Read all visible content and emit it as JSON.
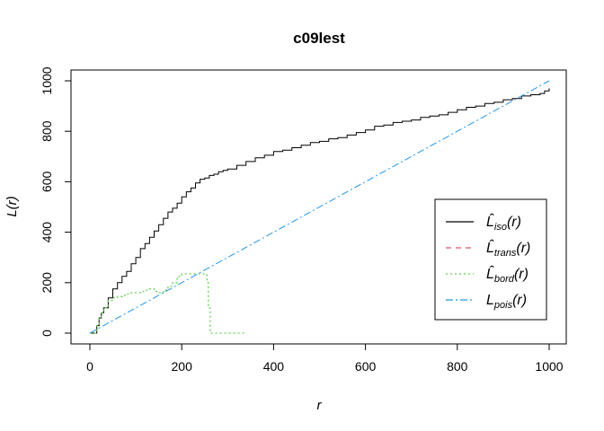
{
  "chart_data": {
    "type": "line",
    "title": "c09lest",
    "xlabel": "r",
    "ylabel": "L(r)",
    "xlim": [
      0,
      1000
    ],
    "ylim": [
      0,
      1000
    ],
    "xticks": [
      0,
      200,
      400,
      600,
      800,
      1000
    ],
    "yticks": [
      0,
      200,
      400,
      600,
      800,
      1000
    ],
    "grid": false,
    "legend_position": "bottom-right",
    "series": [
      {
        "name": "iso",
        "legend_main": "L̂",
        "legend_sub": "iso",
        "legend_tail": "(r)",
        "color": "#000000",
        "dash": "",
        "step": true,
        "x": [
          0,
          10,
          15,
          20,
          25,
          30,
          40,
          50,
          60,
          70,
          80,
          90,
          100,
          110,
          120,
          130,
          140,
          150,
          160,
          170,
          180,
          190,
          200,
          210,
          220,
          230,
          240,
          250,
          260,
          270,
          280,
          290,
          300,
          320,
          340,
          360,
          380,
          400,
          420,
          440,
          460,
          480,
          500,
          520,
          540,
          560,
          580,
          600,
          620,
          640,
          660,
          680,
          700,
          720,
          740,
          760,
          780,
          800,
          820,
          840,
          860,
          880,
          900,
          920,
          940,
          960,
          980,
          990,
          1000
        ],
        "y": [
          0,
          0,
          30,
          60,
          80,
          100,
          140,
          175,
          200,
          225,
          245,
          275,
          300,
          335,
          355,
          380,
          405,
          430,
          455,
          480,
          495,
          515,
          540,
          560,
          575,
          595,
          610,
          615,
          625,
          630,
          640,
          645,
          650,
          665,
          680,
          695,
          705,
          720,
          725,
          735,
          745,
          755,
          760,
          770,
          775,
          785,
          795,
          805,
          820,
          825,
          835,
          840,
          845,
          855,
          860,
          865,
          875,
          885,
          895,
          900,
          910,
          915,
          925,
          930,
          940,
          945,
          950,
          960,
          970
        ]
      },
      {
        "name": "trans",
        "legend_main": "L̂",
        "legend_sub": "trans",
        "legend_tail": "(r)",
        "color": "#df536b",
        "dash": "6,5",
        "step": true,
        "x": [],
        "y": []
      },
      {
        "name": "bord",
        "legend_main": "L̂",
        "legend_sub": "bord",
        "legend_tail": "(r)",
        "color": "#61d04f",
        "dash": "2,3",
        "step": true,
        "x": [
          0,
          10,
          15,
          20,
          25,
          30,
          40,
          50,
          60,
          70,
          80,
          90,
          100,
          110,
          120,
          130,
          140,
          150,
          160,
          170,
          180,
          190,
          200,
          210,
          220,
          230,
          240,
          250,
          255,
          258,
          262,
          270,
          300,
          340
        ],
        "y": [
          0,
          0,
          30,
          60,
          80,
          100,
          130,
          140,
          145,
          150,
          155,
          160,
          160,
          165,
          170,
          175,
          165,
          160,
          170,
          185,
          200,
          225,
          235,
          235,
          235,
          235,
          235,
          230,
          200,
          100,
          0,
          0,
          0,
          0
        ]
      },
      {
        "name": "pois",
        "legend_main": "L",
        "legend_sub": "pois",
        "legend_tail": "(r)",
        "color": "#2297e6",
        "dash": "8,3,2,3",
        "step": false,
        "x": [
          0,
          1000
        ],
        "y": [
          0,
          1000
        ]
      }
    ]
  }
}
